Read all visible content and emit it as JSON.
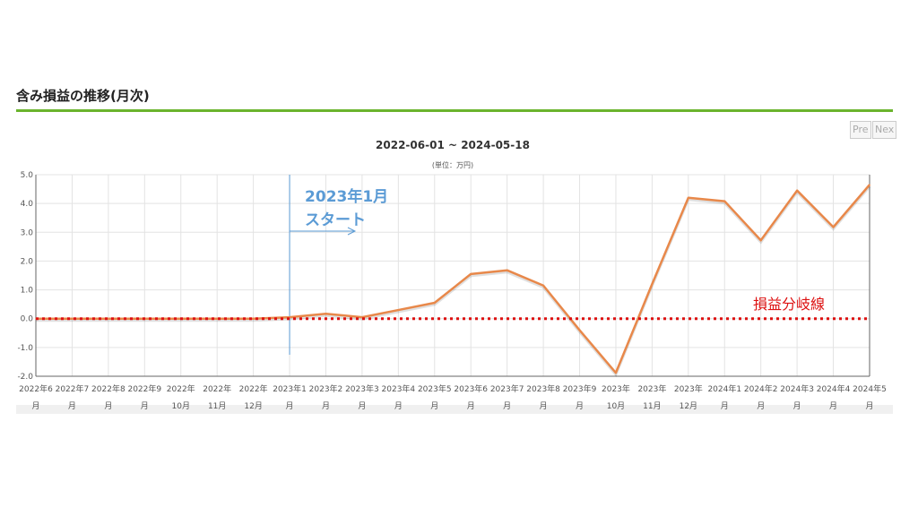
{
  "section": {
    "title": "含み損益の推移(月次)"
  },
  "nav": {
    "prev_label": "Pre",
    "next_label": "Nex"
  },
  "chart_data": {
    "type": "line",
    "title": "2022-06-01 ~ 2024-05-18",
    "unit_label": "(単位：万円)",
    "ylim": [
      -2.0,
      5.0
    ],
    "yticks": [
      "5.0",
      "4.0",
      "3.0",
      "2.0",
      "1.0",
      "0.0",
      "-1.0",
      "-2.0"
    ],
    "ytick_values": [
      5,
      4,
      3,
      2,
      1,
      0,
      -1,
      -2
    ],
    "categories": [
      [
        "2022年6",
        "月"
      ],
      [
        "2022年7",
        "月"
      ],
      [
        "2022年8",
        "月"
      ],
      [
        "2022年9",
        "月"
      ],
      [
        "2022年",
        "10月"
      ],
      [
        "2022年",
        "11月"
      ],
      [
        "2022年",
        "12月"
      ],
      [
        "2023年1",
        "月"
      ],
      [
        "2023年2",
        "月"
      ],
      [
        "2023年3",
        "月"
      ],
      [
        "2023年4",
        "月"
      ],
      [
        "2023年5",
        "月"
      ],
      [
        "2023年6",
        "月"
      ],
      [
        "2023年7",
        "月"
      ],
      [
        "2023年8",
        "月"
      ],
      [
        "2023年9",
        "月"
      ],
      [
        "2023年",
        "10月"
      ],
      [
        "2023年",
        "11月"
      ],
      [
        "2023年",
        "12月"
      ],
      [
        "2024年1",
        "月"
      ],
      [
        "2024年2",
        "月"
      ],
      [
        "2024年3",
        "月"
      ],
      [
        "2024年4",
        "月"
      ],
      [
        "2024年5",
        "月"
      ]
    ],
    "series": [
      {
        "color": "#e8884a",
        "values": [
          0.0,
          0.0,
          0.0,
          0.0,
          0.0,
          0.0,
          0.0,
          0.05,
          0.17,
          0.05,
          0.3,
          0.55,
          1.55,
          1.68,
          1.15,
          -0.4,
          -1.88,
          1.2,
          4.2,
          4.08,
          2.72,
          4.45,
          3.18,
          4.65
        ]
      }
    ],
    "grid": true,
    "breakeven": {
      "value": 0.0,
      "label": "損益分岐線",
      "color": "#dd1111"
    },
    "annotation": {
      "line1": "2023年1月",
      "line2": "スタート",
      "category_index": 7,
      "color": "#5b9bd5"
    }
  }
}
